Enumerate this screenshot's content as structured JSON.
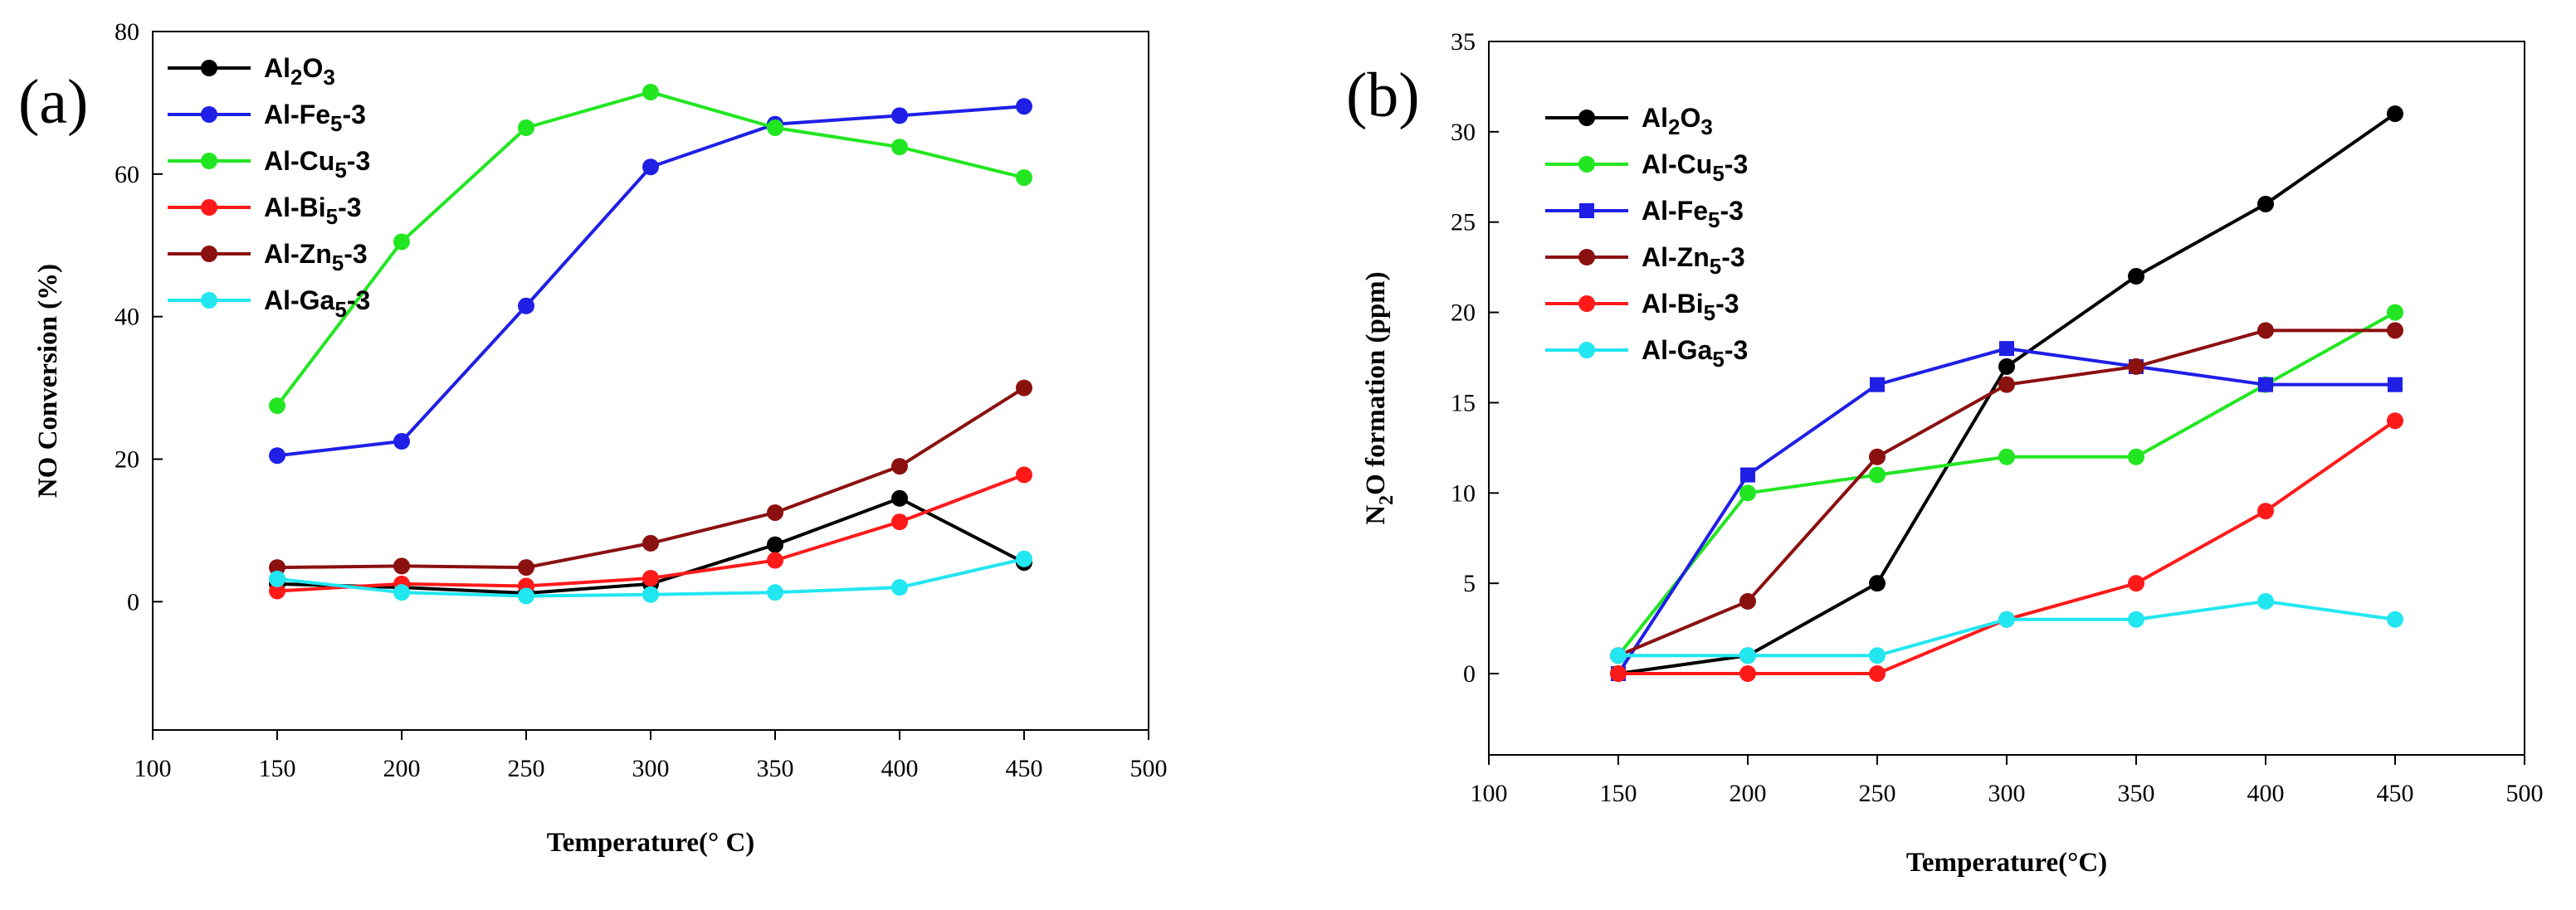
{
  "chart_data": [
    {
      "panel_label": "(a)",
      "type": "line",
      "xlabel": "Temperature(° C)",
      "ylabel": "NO Conversion (%)",
      "xlim": [
        100,
        500
      ],
      "ylim": [
        -18,
        80
      ],
      "xticks": [
        100,
        150,
        200,
        250,
        300,
        350,
        400,
        450,
        500
      ],
      "yticks": [
        0,
        20,
        40,
        60,
        80
      ],
      "x": [
        150,
        200,
        250,
        300,
        350,
        400,
        450
      ],
      "series": [
        {
          "name": "Al2O3",
          "label_main": "Al",
          "label_sub": "2",
          "label_main2": "O",
          "label_sub2": "3",
          "label_tail": "",
          "color": "#000000",
          "marker": "circle",
          "values": [
            2.5,
            2.0,
            1.2,
            2.5,
            8.0,
            14.5,
            5.5
          ]
        },
        {
          "name": "Al-Fe5-3",
          "label_main": "Al-Fe",
          "label_sub": "5",
          "label_main2": "",
          "label_sub2": "",
          "label_tail": "-3",
          "color": "#1f1fe6",
          "marker": "circle",
          "values": [
            20.5,
            22.5,
            41.5,
            61.0,
            67.0,
            68.2,
            69.5
          ]
        },
        {
          "name": "Al-Cu5-3",
          "label_main": "Al-Cu",
          "label_sub": "5",
          "label_main2": "",
          "label_sub2": "",
          "label_tail": "-3",
          "color": "#22e622",
          "marker": "circle",
          "values": [
            27.5,
            50.5,
            66.5,
            71.5,
            66.5,
            63.8,
            59.5
          ]
        },
        {
          "name": "Al-Bi5-3",
          "label_main": "Al-Bi",
          "label_sub": "5",
          "label_main2": "",
          "label_sub2": "",
          "label_tail": "-3",
          "color": "#ff1a1a",
          "marker": "circle",
          "values": [
            1.5,
            2.5,
            2.2,
            3.3,
            5.8,
            11.2,
            17.8
          ]
        },
        {
          "name": "Al-Zn5-3",
          "label_main": "Al-Zn",
          "label_sub": "5",
          "label_main2": "",
          "label_sub2": "",
          "label_tail": "-3",
          "color": "#8b1010",
          "marker": "circle",
          "values": [
            4.8,
            5.0,
            4.8,
            8.2,
            12.5,
            19.0,
            30.0
          ]
        },
        {
          "name": "Al-Ga5-3",
          "label_main": "Al-Ga",
          "label_sub": "5",
          "label_main2": "",
          "label_sub2": "",
          "label_tail": "-3",
          "color": "#22e6f0",
          "marker": "circle",
          "values": [
            3.2,
            1.3,
            0.8,
            1.0,
            1.3,
            2.0,
            6.0
          ]
        }
      ]
    },
    {
      "panel_label": "(b)",
      "type": "line",
      "xlabel": "Temperature(°C)",
      "ylabel_main": "N",
      "ylabel_sub": "2",
      "ylabel_rest": "O formation (ppm)",
      "xlim": [
        100,
        500
      ],
      "ylim": [
        -4.5,
        35
      ],
      "xticks": [
        100,
        150,
        200,
        250,
        300,
        350,
        400,
        450,
        500
      ],
      "yticks": [
        0,
        5,
        10,
        15,
        20,
        25,
        30,
        35
      ],
      "x": [
        150,
        200,
        250,
        300,
        350,
        400,
        450
      ],
      "series": [
        {
          "name": "Al2O3",
          "label_main": "Al",
          "label_sub": "2",
          "label_main2": "O",
          "label_sub2": "3",
          "label_tail": "",
          "color": "#000000",
          "marker": "circle",
          "values": [
            0,
            1,
            5,
            17,
            22,
            26,
            31
          ]
        },
        {
          "name": "Al-Cu5-3",
          "label_main": "Al-Cu",
          "label_sub": "5",
          "label_main2": "",
          "label_sub2": "",
          "label_tail": "-3",
          "color": "#22e622",
          "marker": "circle",
          "values": [
            1,
            10,
            11,
            12,
            12,
            16,
            20
          ]
        },
        {
          "name": "Al-Fe5-3",
          "label_main": "Al-Fe",
          "label_sub": "5",
          "label_main2": "",
          "label_sub2": "",
          "label_tail": "-3",
          "color": "#1f1fe6",
          "marker": "square",
          "values": [
            0,
            11,
            16,
            18,
            17,
            16,
            16
          ]
        },
        {
          "name": "Al-Zn5-3",
          "label_main": "Al-Zn",
          "label_sub": "5",
          "label_main2": "",
          "label_sub2": "",
          "label_tail": "-3",
          "color": "#8b1010",
          "marker": "circle",
          "values": [
            1,
            4,
            12,
            16,
            17,
            19,
            19
          ]
        },
        {
          "name": "Al-Bi5-3",
          "label_main": "Al-Bi",
          "label_sub": "5",
          "label_main2": "",
          "label_sub2": "",
          "label_tail": "-3",
          "color": "#ff1a1a",
          "marker": "circle",
          "values": [
            0,
            0,
            0,
            3,
            5,
            9,
            14
          ]
        },
        {
          "name": "Al-Ga5-3",
          "label_main": "Al-Ga",
          "label_sub": "5",
          "label_main2": "",
          "label_sub2": "",
          "label_tail": "-3",
          "color": "#22e6f0",
          "marker": "circle",
          "values": [
            1,
            1,
            1,
            3,
            3,
            4,
            3
          ]
        }
      ]
    }
  ]
}
